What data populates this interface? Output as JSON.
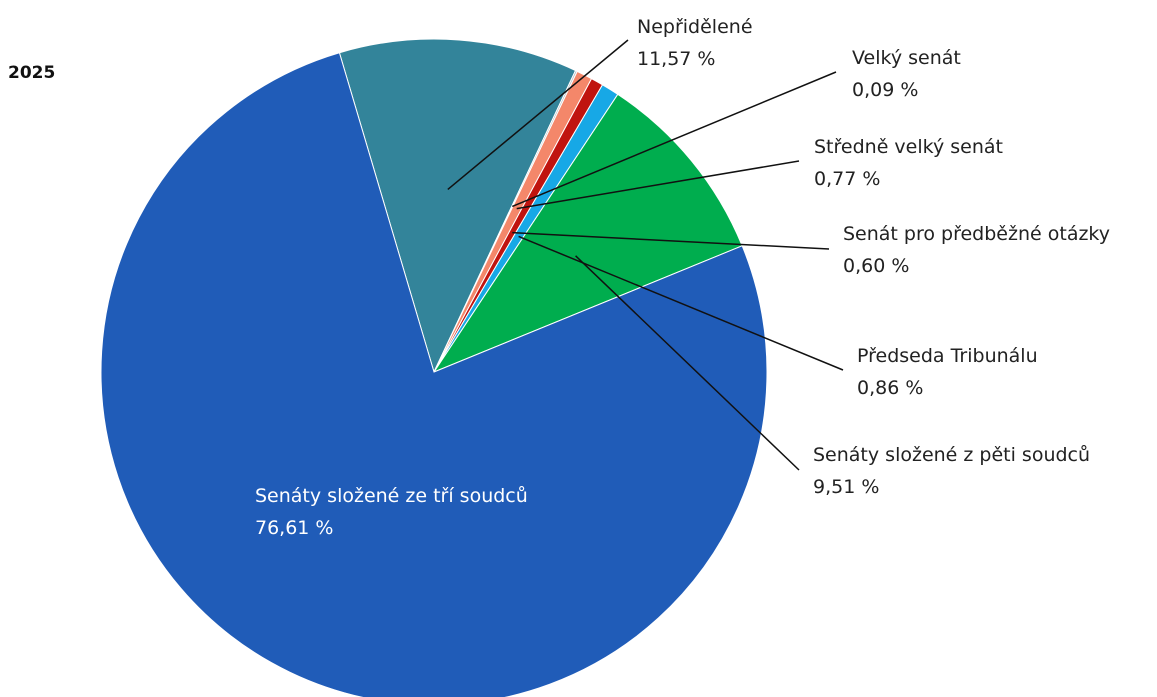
{
  "chart_data": {
    "type": "pie",
    "title": "2025",
    "slices": [
      {
        "label": "Nepřidělené",
        "value_text": "11,57 %",
        "value": 11.57,
        "color": "#33849A"
      },
      {
        "label": "Velký senát",
        "value_text": "0,09 %",
        "value": 0.09,
        "color": "#B8C1C8"
      },
      {
        "label": "Středně velký senát",
        "value_text": "0,77 %",
        "value": 0.77,
        "color": "#F4876A"
      },
      {
        "label": "Senát pro předběžné otázky",
        "value_text": "0,60 %",
        "value": 0.6,
        "color": "#C0140F"
      },
      {
        "label": "Předseda Tribunálu",
        "value_text": "0,86 %",
        "value": 0.86,
        "color": "#17A8E6"
      },
      {
        "label": "Senáty složené z pěti soudců",
        "value_text": "9,51 %",
        "value": 9.51,
        "color": "#00AD4E"
      },
      {
        "label": "Senáty složené ze tří soudců",
        "value_text": "76,61 %",
        "value": 76.61,
        "color": "#205CB8"
      }
    ]
  }
}
